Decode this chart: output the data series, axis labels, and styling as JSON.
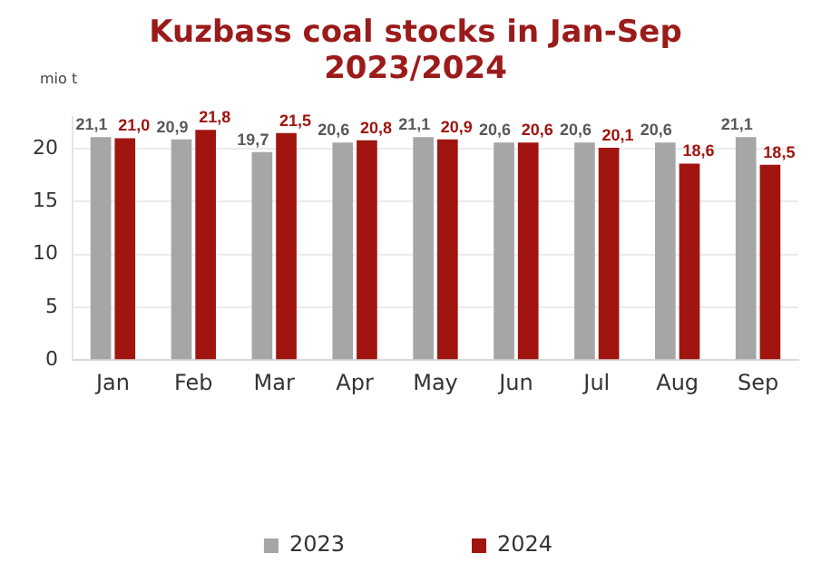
{
  "chart_data": {
    "type": "bar",
    "title": "Kuzbass coal stocks in  Jan-Sep\n2023/2024",
    "ylabel": "mio t",
    "categories": [
      "Jan",
      "Feb",
      "Mar",
      "Apr",
      "May",
      "Jun",
      "Jul",
      "Aug",
      "Sep"
    ],
    "series": [
      {
        "name": "2023",
        "color": "#a6a6a6",
        "values": [
          21.1,
          20.9,
          19.7,
          20.6,
          21.1,
          20.6,
          20.6,
          20.6,
          21.1
        ],
        "value_labels": [
          "21,1",
          "20,9",
          "19,7",
          "20,6",
          "21,1",
          "20,6",
          "20,6",
          "20,6",
          "21,1"
        ]
      },
      {
        "name": "2024",
        "color": "#a0150f",
        "values": [
          21.0,
          21.8,
          21.5,
          20.8,
          20.9,
          20.6,
          20.1,
          18.6,
          18.5
        ],
        "value_labels": [
          "21,0",
          "21,8",
          "21,5",
          "20,8",
          "20,9",
          "20,6",
          "20,1",
          "18,6",
          "18,5"
        ]
      }
    ],
    "ylim": [
      0,
      23
    ],
    "yticks": [
      0,
      5,
      10,
      15,
      20
    ],
    "grid": "y",
    "legend": "bottom"
  }
}
